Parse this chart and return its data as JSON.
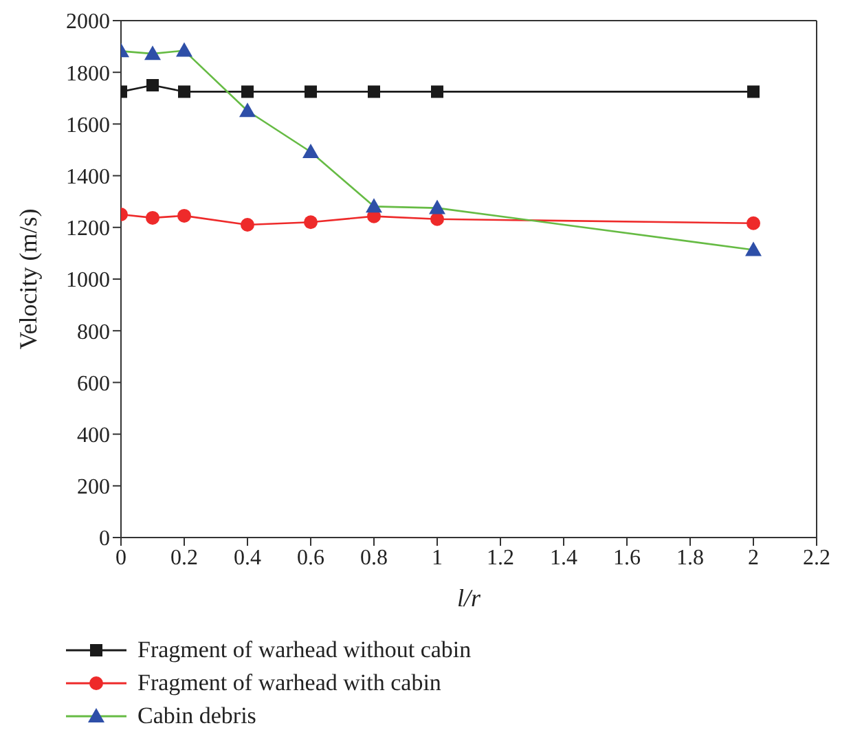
{
  "chart_data": {
    "type": "line",
    "xlabel": "l/r",
    "ylabel": "Velocity (m/s)",
    "xlim": [
      0,
      2.2
    ],
    "xticks": [
      0,
      0.2,
      0.4,
      0.6,
      0.8,
      1,
      1.2,
      1.4,
      1.6,
      1.8,
      2,
      2.2
    ],
    "ylim": [
      0,
      2000
    ],
    "yticks": [
      0,
      200,
      400,
      600,
      800,
      1000,
      1200,
      1400,
      1600,
      1800,
      2000
    ],
    "x": [
      0,
      0.1,
      0.2,
      0.4,
      0.6,
      0.8,
      1,
      2
    ],
    "legend": "bottom",
    "series": [
      {
        "name": "Fragment of warhead without cabin",
        "color": "#1a1a1a",
        "marker": "square",
        "values": [
          1725,
          1750,
          1725,
          1725,
          1725,
          1725,
          1725,
          1725
        ]
      },
      {
        "name": "Fragment of warhead with cabin",
        "color": "#ee2a2a",
        "marker": "circle",
        "values": [
          1250,
          1237,
          1245,
          1210,
          1220,
          1243,
          1232,
          1216
        ]
      },
      {
        "name": "Cabin debris",
        "color": "#66bb44",
        "colors": [
          "#2e4fa8",
          "#2e4fa8",
          "#2e4fa8",
          "#2e4fa8",
          "#2e4fa8",
          "#2e4fa8",
          "#2e4fa8",
          "#2e4fa8"
        ],
        "marker": "triangle",
        "values": [
          1882,
          1872,
          1884,
          1651,
          1492,
          1281,
          1275,
          1113
        ]
      }
    ]
  }
}
